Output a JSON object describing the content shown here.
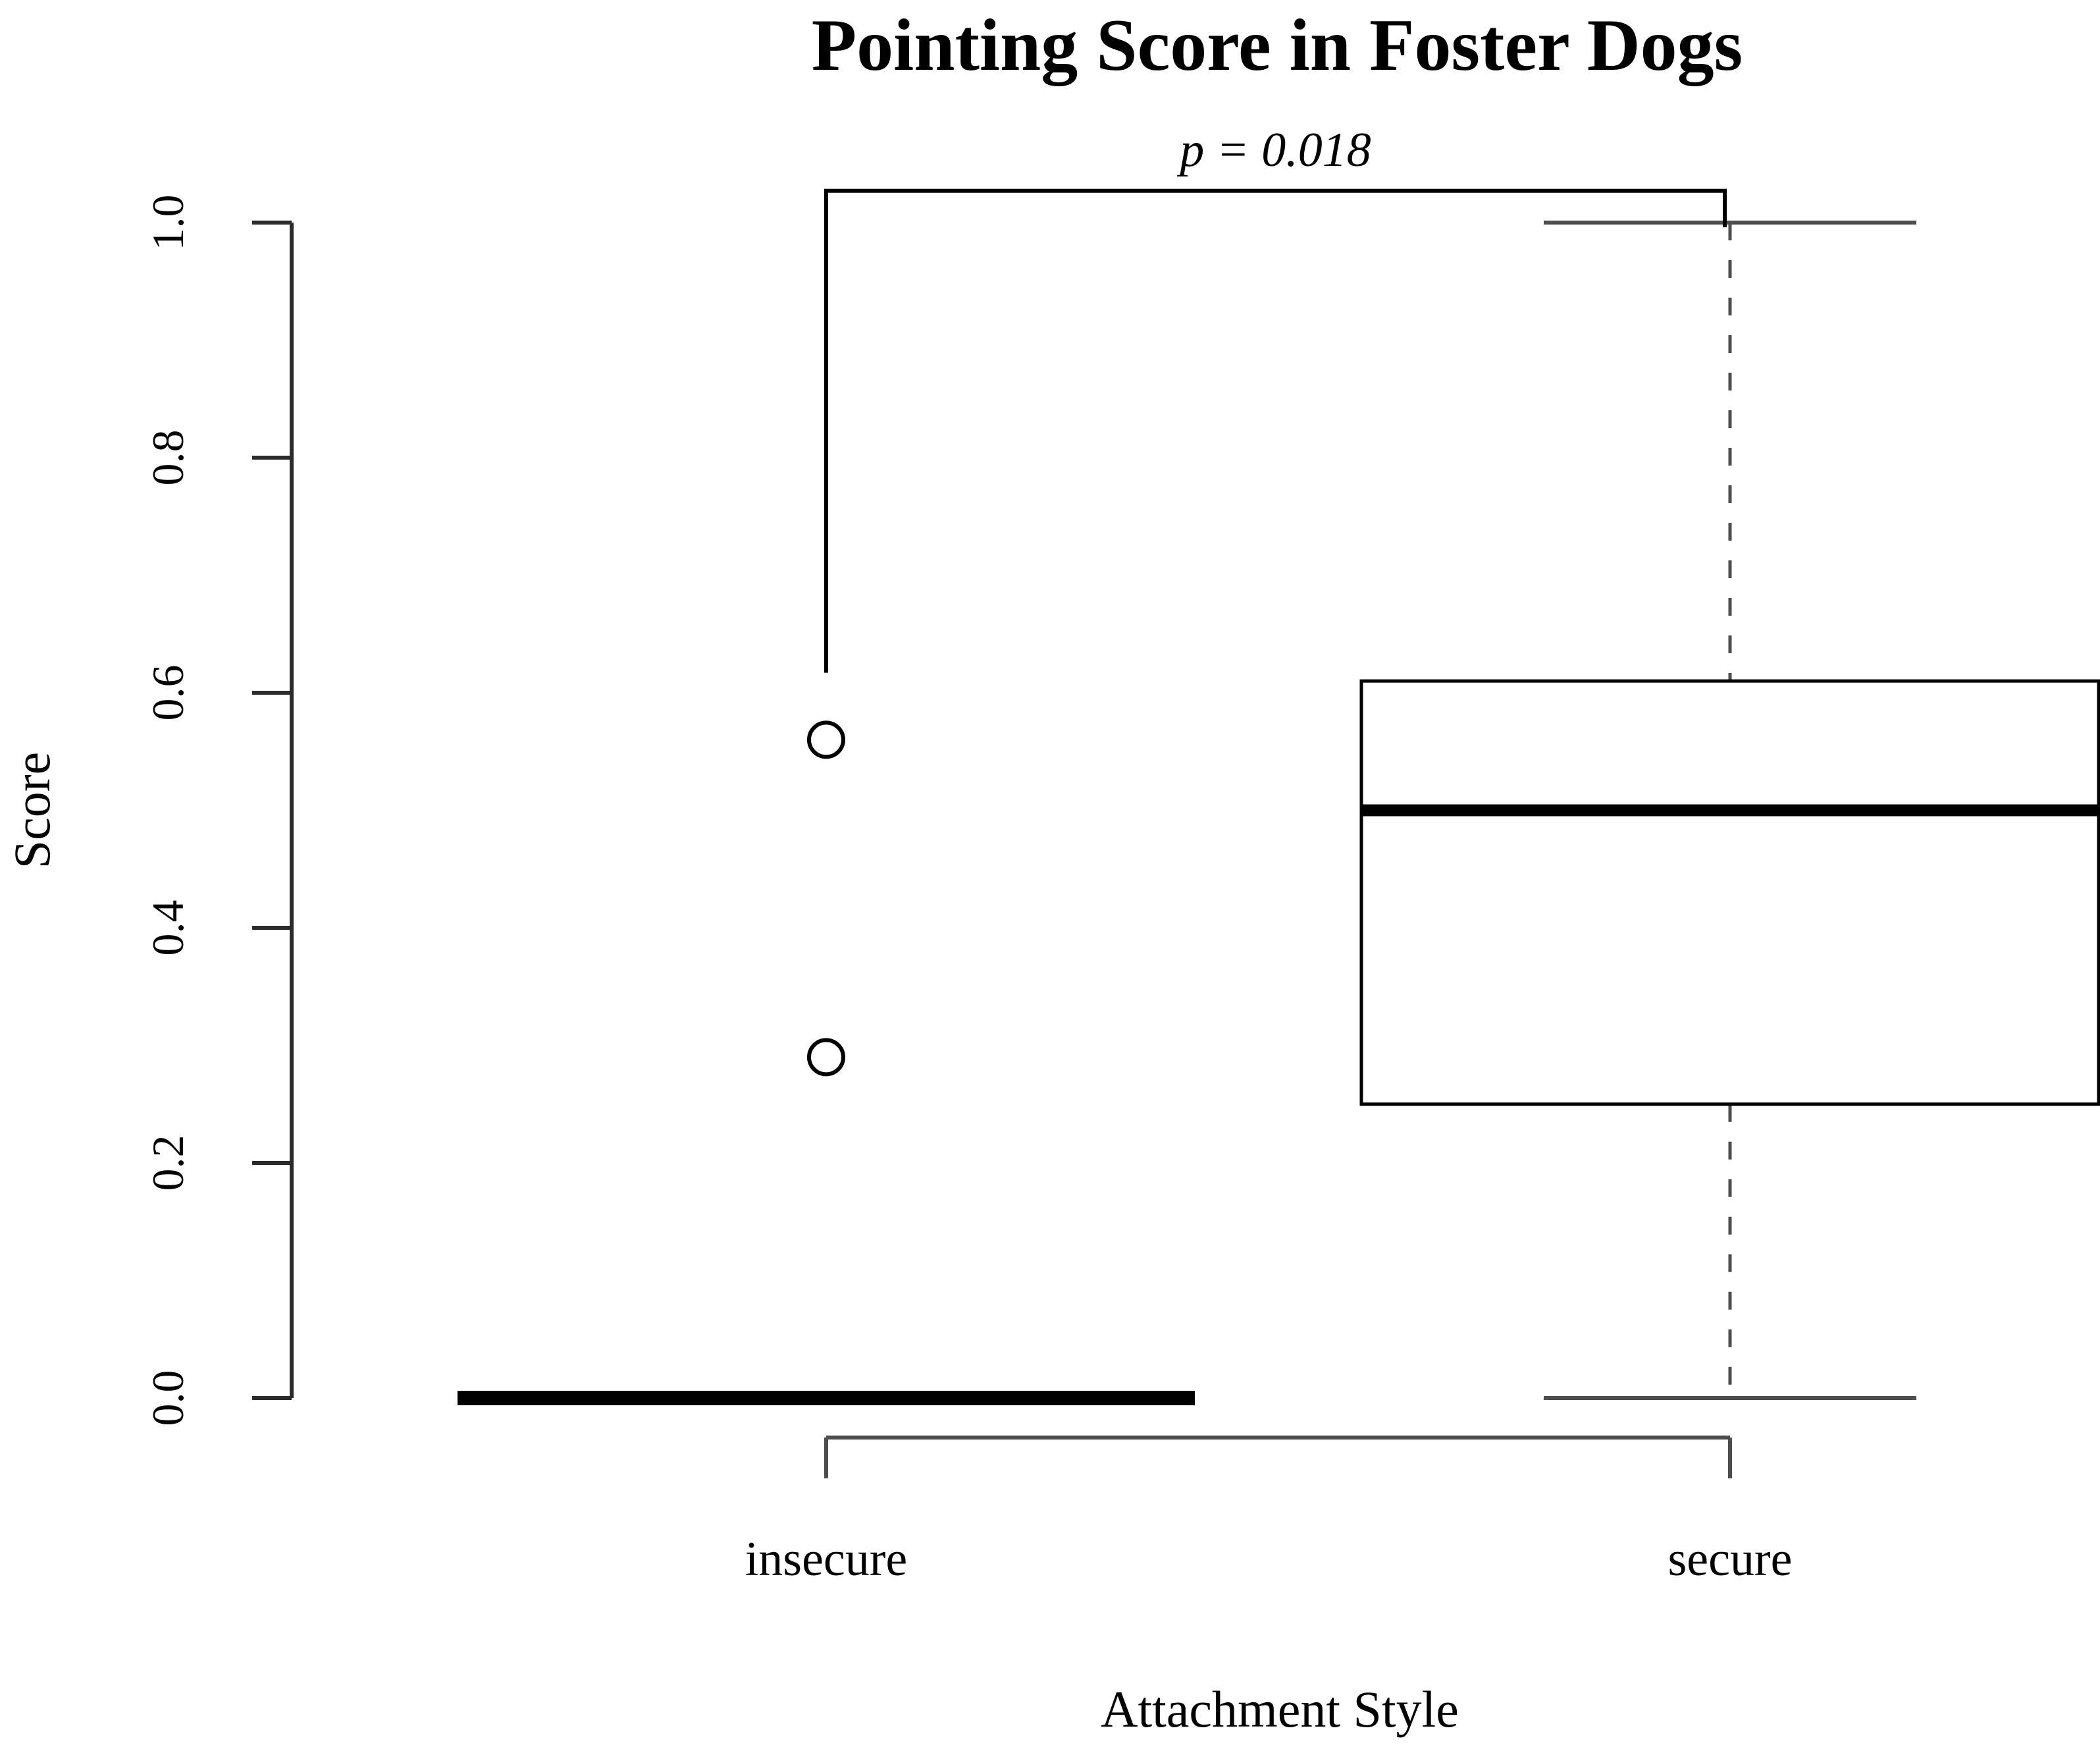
{
  "figure": {
    "title": "Pointing Score in Foster Dogs",
    "x_axis_label": "Attachment Style",
    "y_axis_label": "Score",
    "significance_label": "p = 0.018"
  },
  "chart_data": {
    "type": "boxplot",
    "title": "Pointing Score in Foster Dogs",
    "xlabel": "Attachment Style",
    "ylabel": "Score",
    "ylim": [
      0.0,
      1.0
    ],
    "yticks": [
      0.0,
      0.2,
      0.4,
      0.6,
      0.8,
      1.0
    ],
    "ytick_labels": [
      "0.0",
      "0.2",
      "0.4",
      "0.6",
      "0.8",
      "1.0"
    ],
    "ytick_label_rotation": -90,
    "grid": false,
    "legend_position": "none",
    "categories": [
      "insecure",
      "secure"
    ],
    "series": [
      {
        "name": "insecure",
        "whisker_low": 0.0,
        "q1": 0.0,
        "median": 0.0,
        "q3": 0.0,
        "whisker_high": 0.0,
        "outliers": [
          0.29,
          0.56
        ]
      },
      {
        "name": "secure",
        "whisker_low": 0.0,
        "q1": 0.25,
        "median": 0.5,
        "q3": 0.61,
        "whisker_high": 1.0,
        "outliers": []
      }
    ],
    "significance_bracket": {
      "label": "p = 0.018",
      "between": [
        "insecure",
        "secure"
      ],
      "bar_level": 1.027,
      "left_drop_level": 0.617,
      "right_drop_level": 0.996
    },
    "colors": {
      "box_stroke": "#000000",
      "median_stroke": "#000000",
      "whisker_stroke": "#4d4d4d",
      "staple_stroke": "#4d4d4d",
      "axis_stroke": "#2b2b2b",
      "bracket_stroke": "#000000",
      "text": "#000000",
      "background": "#ffffff"
    }
  }
}
